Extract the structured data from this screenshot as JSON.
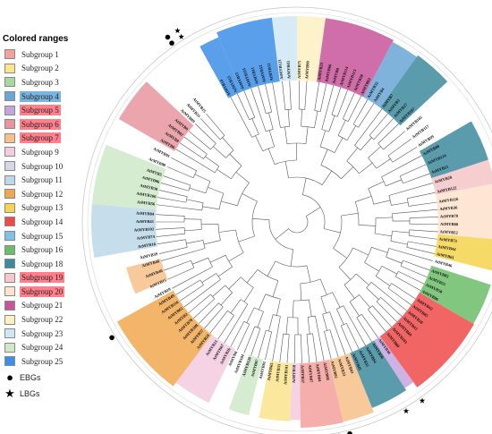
{
  "legend": {
    "title": "Colored ranges",
    "subgroups": [
      {
        "label": "Subgroup 1",
        "color": "#f4a09c",
        "highlight": ""
      },
      {
        "label": "Subgroup 2",
        "color": "#fbe48c",
        "highlight": ""
      },
      {
        "label": "Subgroup 3",
        "color": "#a8d8a0",
        "highlight": ""
      },
      {
        "label": "Subgroup 4",
        "color": "#6aa6d6",
        "highlight": "#7ab4e0"
      },
      {
        "label": "Subgroup 5",
        "color": "#c6a4e0",
        "highlight": "#ff7f8a"
      },
      {
        "label": "Subgroup 6",
        "color": "#e8959e",
        "highlight": "#ff7f8a"
      },
      {
        "label": "Subgroup 7",
        "color": "#f7c08a",
        "highlight": "#ff7f8a"
      },
      {
        "label": "Subgroup 9",
        "color": "#f3cbe0",
        "highlight": ""
      },
      {
        "label": "Subgroup 10",
        "color": "#d6d6ea",
        "highlight": ""
      },
      {
        "label": "Subgroup 11",
        "color": "#bcd8e8",
        "highlight": ""
      },
      {
        "label": "Subgroup 12",
        "color": "#f0a850",
        "highlight": ""
      },
      {
        "label": "Subgroup 13",
        "color": "#f5d44e",
        "highlight": ""
      },
      {
        "label": "Subgroup 14",
        "color": "#ee4a4a",
        "highlight": ""
      },
      {
        "label": "Subgroup 15",
        "color": "#7ec3e6",
        "highlight": ""
      },
      {
        "label": "Subgroup 16",
        "color": "#6cbd6a",
        "highlight": ""
      },
      {
        "label": "Subgroup 18",
        "color": "#3d8a9e",
        "highlight": ""
      },
      {
        "label": "Subgroup 19",
        "color": "#f6c6c8",
        "highlight": "#ff7f8a"
      },
      {
        "label": "Subgroup 20",
        "color": "#fde2cc",
        "highlight": "#ff7f8a"
      },
      {
        "label": "Subgroup 21",
        "color": "#c8559a",
        "highlight": ""
      },
      {
        "label": "Subgroup 22",
        "color": "#fdf0c0",
        "highlight": ""
      },
      {
        "label": "Subgroup 23",
        "color": "#cfe7f5",
        "highlight": ""
      },
      {
        "label": "Subgroup 24",
        "color": "#cfe9c8",
        "highlight": ""
      },
      {
        "label": "Subgroup 25",
        "color": "#3c8ee6",
        "highlight": ""
      }
    ],
    "markers": [
      {
        "label": "EBGs",
        "symbol": "●"
      },
      {
        "label": "LBGs",
        "symbol": "★"
      }
    ]
  },
  "sectors": [
    {
      "from": -119,
      "to": -113,
      "color": "#3c8ee6",
      "r": 0.92
    },
    {
      "from": -113,
      "to": -97,
      "color": "#3c8ee6",
      "r": 1.0
    },
    {
      "from": -97,
      "to": -90,
      "color": "#cfe7f5",
      "r": 1.0
    },
    {
      "from": -90,
      "to": -82,
      "color": "#fdf0c0",
      "r": 1.0
    },
    {
      "from": -82,
      "to": -62,
      "color": "#c8559a",
      "r": 1.0
    },
    {
      "from": -62,
      "to": -54,
      "color": "#6aa6d6",
      "r": 0.97
    },
    {
      "from": -54,
      "to": -43,
      "color": "#3d8a9e",
      "r": 1.0
    },
    {
      "from": -30,
      "to": -18,
      "color": "#3d8a9e",
      "r": 0.93
    },
    {
      "from": -18,
      "to": -11,
      "color": "#f6c6c8",
      "r": 0.93
    },
    {
      "from": -11,
      "to": 5,
      "color": "#fde2cc",
      "r": 0.93
    },
    {
      "from": 5,
      "to": 14,
      "color": "#f5d44e",
      "r": 0.97
    },
    {
      "from": 18,
      "to": 30,
      "color": "#6cbd6a",
      "r": 0.97
    },
    {
      "from": 30,
      "to": 54,
      "color": "#ee4a4a",
      "r": 0.98
    },
    {
      "from": 54,
      "to": 57,
      "color": "#c6a4e0",
      "r": 0.88
    },
    {
      "from": 57,
      "to": 68,
      "color": "#3d8a9e",
      "r": 0.92
    },
    {
      "from": 68,
      "to": 77,
      "color": "#f7c08a",
      "r": 0.99
    },
    {
      "from": 77,
      "to": 89,
      "color": "#f4a09c",
      "r": 1.0
    },
    {
      "from": 89,
      "to": 92,
      "color": "#f3cbe0",
      "r": 0.88
    },
    {
      "from": 92,
      "to": 101,
      "color": "#fbe48c",
      "r": 0.9
    },
    {
      "from": 104,
      "to": 110,
      "color": "#cfe9c8",
      "r": 0.9
    },
    {
      "from": 116,
      "to": 127,
      "color": "#f3cbe0",
      "r": 0.93
    },
    {
      "from": 127,
      "to": 151,
      "color": "#f0a850",
      "r": 1.0
    },
    {
      "from": 156,
      "to": 165,
      "color": "#f7c08a",
      "r": 0.55
    },
    {
      "from": 170,
      "to": 185,
      "color": "#bcd8e8",
      "r": 1.0
    },
    {
      "from": 185,
      "to": 202,
      "color": "#cfe9c8",
      "r": 1.0
    },
    {
      "from": 210,
      "to": 223,
      "color": "#e8959e",
      "r": 1.0
    }
  ],
  "leaves": [
    {
      "a": -118,
      "t": "AtMYB14"
    },
    {
      "a": -115,
      "t": "AtMYB15"
    },
    {
      "a": -112,
      "t": "AtMYB13"
    },
    {
      "a": -109,
      "t": "AtMYB111"
    },
    {
      "a": -106,
      "t": "AtMYB11"
    },
    {
      "a": -103,
      "t": "AtMYB12"
    },
    {
      "a": -100,
      "t": "AtMYB12"
    },
    {
      "a": -96,
      "t": "AtMYB123"
    },
    {
      "a": -93,
      "t": "AtMYB43"
    },
    {
      "a": -89,
      "t": "AtMYB75"
    },
    {
      "a": -86,
      "t": "AtMYB90"
    },
    {
      "a": -81,
      "t": "AtMYB23"
    },
    {
      "a": -78,
      "t": "AtMYB66"
    },
    {
      "a": -75,
      "t": "AtMYB0"
    },
    {
      "a": -72,
      "t": "AtMYB114"
    },
    {
      "a": -69,
      "t": "AtMYB113"
    },
    {
      "a": -66,
      "t": "AtMYB58"
    },
    {
      "a": -63,
      "t": "AtMYB63"
    },
    {
      "a": -60,
      "t": "AtMYB32"
    },
    {
      "a": -57,
      "t": "AtMYB4"
    },
    {
      "a": -53,
      "t": "AtMYB7"
    },
    {
      "a": -50,
      "t": "AtMYB3"
    },
    {
      "a": -47,
      "t": "AtMYB27"
    },
    {
      "a": -44,
      "t": "AtMYB107"
    },
    {
      "a": -40,
      "t": "AtMYB105"
    },
    {
      "a": -36,
      "t": "AtMYB117"
    },
    {
      "a": -32,
      "t": "AtMYB99"
    },
    {
      "a": -28,
      "t": "AtMYB88"
    },
    {
      "a": -24,
      "t": "AtMYB124"
    },
    {
      "a": -20,
      "t": "AtMYB51"
    },
    {
      "a": -16,
      "t": "AtMYB28"
    },
    {
      "a": -12,
      "t": "AtMYB122"
    },
    {
      "a": -8,
      "t": "AtMYB116"
    },
    {
      "a": -5,
      "t": "AtMYB36"
    },
    {
      "a": -2,
      "t": "AtMYB78"
    },
    {
      "a": 1,
      "t": "AtMYB80"
    },
    {
      "a": 4,
      "t": "AtMYB52"
    },
    {
      "a": 7,
      "t": "AtMYB73"
    },
    {
      "a": 10,
      "t": "AtMYB44"
    },
    {
      "a": 13,
      "t": "AtMYB61"
    },
    {
      "a": 16,
      "t": "AtMYB46"
    },
    {
      "a": 20,
      "t": "AtMYB83"
    },
    {
      "a": 23,
      "t": "AtMYB55"
    },
    {
      "a": 26,
      "t": "AtMYB50"
    },
    {
      "a": 29,
      "t": "AtMYB86"
    },
    {
      "a": 33,
      "t": "AtMYB42"
    },
    {
      "a": 36,
      "t": "AtMYB85"
    },
    {
      "a": 39,
      "t": "AtMYB20"
    },
    {
      "a": 42,
      "t": "AtMYB43"
    },
    {
      "a": 45,
      "t": "AtMYB69"
    },
    {
      "a": 48,
      "t": "AtMYB103"
    },
    {
      "a": 51,
      "t": "AtMYB60"
    },
    {
      "a": 55,
      "t": "AtMYB30"
    },
    {
      "a": 58,
      "t": "AtMYB96"
    },
    {
      "a": 61,
      "t": "AtMYB94"
    },
    {
      "a": 64,
      "t": "AtMYB31"
    },
    {
      "a": 67,
      "t": "AtMYB45"
    },
    {
      "a": 70,
      "t": "AtMYB93"
    },
    {
      "a": 73,
      "t": "AtMYB53"
    },
    {
      "a": 76,
      "t": "AtMYB92"
    },
    {
      "a": 79,
      "t": "AtMYB68"
    },
    {
      "a": 82,
      "t": "AtMYB84"
    },
    {
      "a": 85,
      "t": "AtMYB87"
    },
    {
      "a": 88,
      "t": "AtMYB37"
    },
    {
      "a": 91,
      "t": "AtMYB38"
    },
    {
      "a": 94,
      "t": "AtMYB101"
    },
    {
      "a": 97,
      "t": "AtMYB33"
    },
    {
      "a": 100,
      "t": "AtMYB65"
    },
    {
      "a": 103,
      "t": "AtMYB81"
    },
    {
      "a": 106,
      "t": "AtMYB97"
    },
    {
      "a": 109,
      "t": "AtMYB120"
    },
    {
      "a": 112,
      "t": "AtMYB104"
    },
    {
      "a": 115,
      "t": "AtMYB0"
    },
    {
      "a": 118,
      "t": "AtMYB26"
    },
    {
      "a": 121,
      "t": "AtMYB67"
    },
    {
      "a": 124,
      "t": "AtMYB21"
    },
    {
      "a": 128,
      "t": "AtMYB24"
    },
    {
      "a": 131,
      "t": "AtMYB57"
    },
    {
      "a": 134,
      "t": "AtMYB108"
    },
    {
      "a": 137,
      "t": "AtMYB78"
    },
    {
      "a": 140,
      "t": "AtMYB2"
    },
    {
      "a": 143,
      "t": "AtMYB62"
    },
    {
      "a": 146,
      "t": "AtMYB116"
    },
    {
      "a": 149,
      "t": "AtMYB49"
    },
    {
      "a": 152,
      "t": "AtMYB19"
    },
    {
      "a": 156,
      "t": "AtMYB15"
    },
    {
      "a": 160,
      "t": "AtMYB40"
    },
    {
      "a": 164,
      "t": "AtMYB48"
    },
    {
      "a": 167,
      "t": "AtMYB39"
    },
    {
      "a": 171,
      "t": "AtMYB16"
    },
    {
      "a": 174,
      "t": "AtMYB74"
    },
    {
      "a": 177,
      "t": "AtMYB102"
    },
    {
      "a": 180,
      "t": "AtMYB41"
    },
    {
      "a": 183,
      "t": "AtMYB84"
    },
    {
      "a": 187,
      "t": "AtMYB56"
    },
    {
      "a": 190,
      "t": "AtMYB106"
    },
    {
      "a": 193,
      "t": "AtMYB38"
    },
    {
      "a": 196,
      "t": "AtMYB86"
    },
    {
      "a": 199,
      "t": "AtMYB5"
    },
    {
      "a": 203,
      "t": "AtMYB98"
    },
    {
      "a": 207,
      "t": "AtMYB91"
    },
    {
      "a": 211,
      "t": "AtMYB6"
    },
    {
      "a": 214,
      "t": "AtMYB8"
    },
    {
      "a": 217,
      "t": "AtMYB82"
    },
    {
      "a": 220,
      "t": "AtMYB9"
    },
    {
      "a": 224,
      "t": "AtMYB89"
    },
    {
      "a": 227,
      "t": "AtMYB35"
    },
    {
      "a": 230,
      "t": "AtMYB25"
    }
  ],
  "markers": [
    {
      "a": -125,
      "k": "circle",
      "n": 2
    },
    {
      "a": -122,
      "k": "star",
      "n": 2
    },
    {
      "a": -15,
      "k": "circle",
      "n": 1
    },
    {
      "a": -5,
      "k": "circle",
      "n": 1
    },
    {
      "a": -1,
      "k": "star",
      "n": 1
    },
    {
      "a": 55,
      "k": "star",
      "n": 1
    },
    {
      "a": 60,
      "k": "star",
      "n": 1
    },
    {
      "a": 76,
      "k": "circle",
      "n": 1
    },
    {
      "a": 79,
      "k": "circle",
      "n": 1
    },
    {
      "a": 82,
      "k": "circle",
      "n": 1
    },
    {
      "a": 86,
      "k": "star",
      "n": 1
    },
    {
      "a": 89,
      "k": "star",
      "n": 1
    },
    {
      "a": 92,
      "k": "star",
      "n": 1
    },
    {
      "a": 95,
      "k": "star",
      "n": 1
    },
    {
      "a": 148,
      "k": "circle",
      "n": 1
    }
  ]
}
